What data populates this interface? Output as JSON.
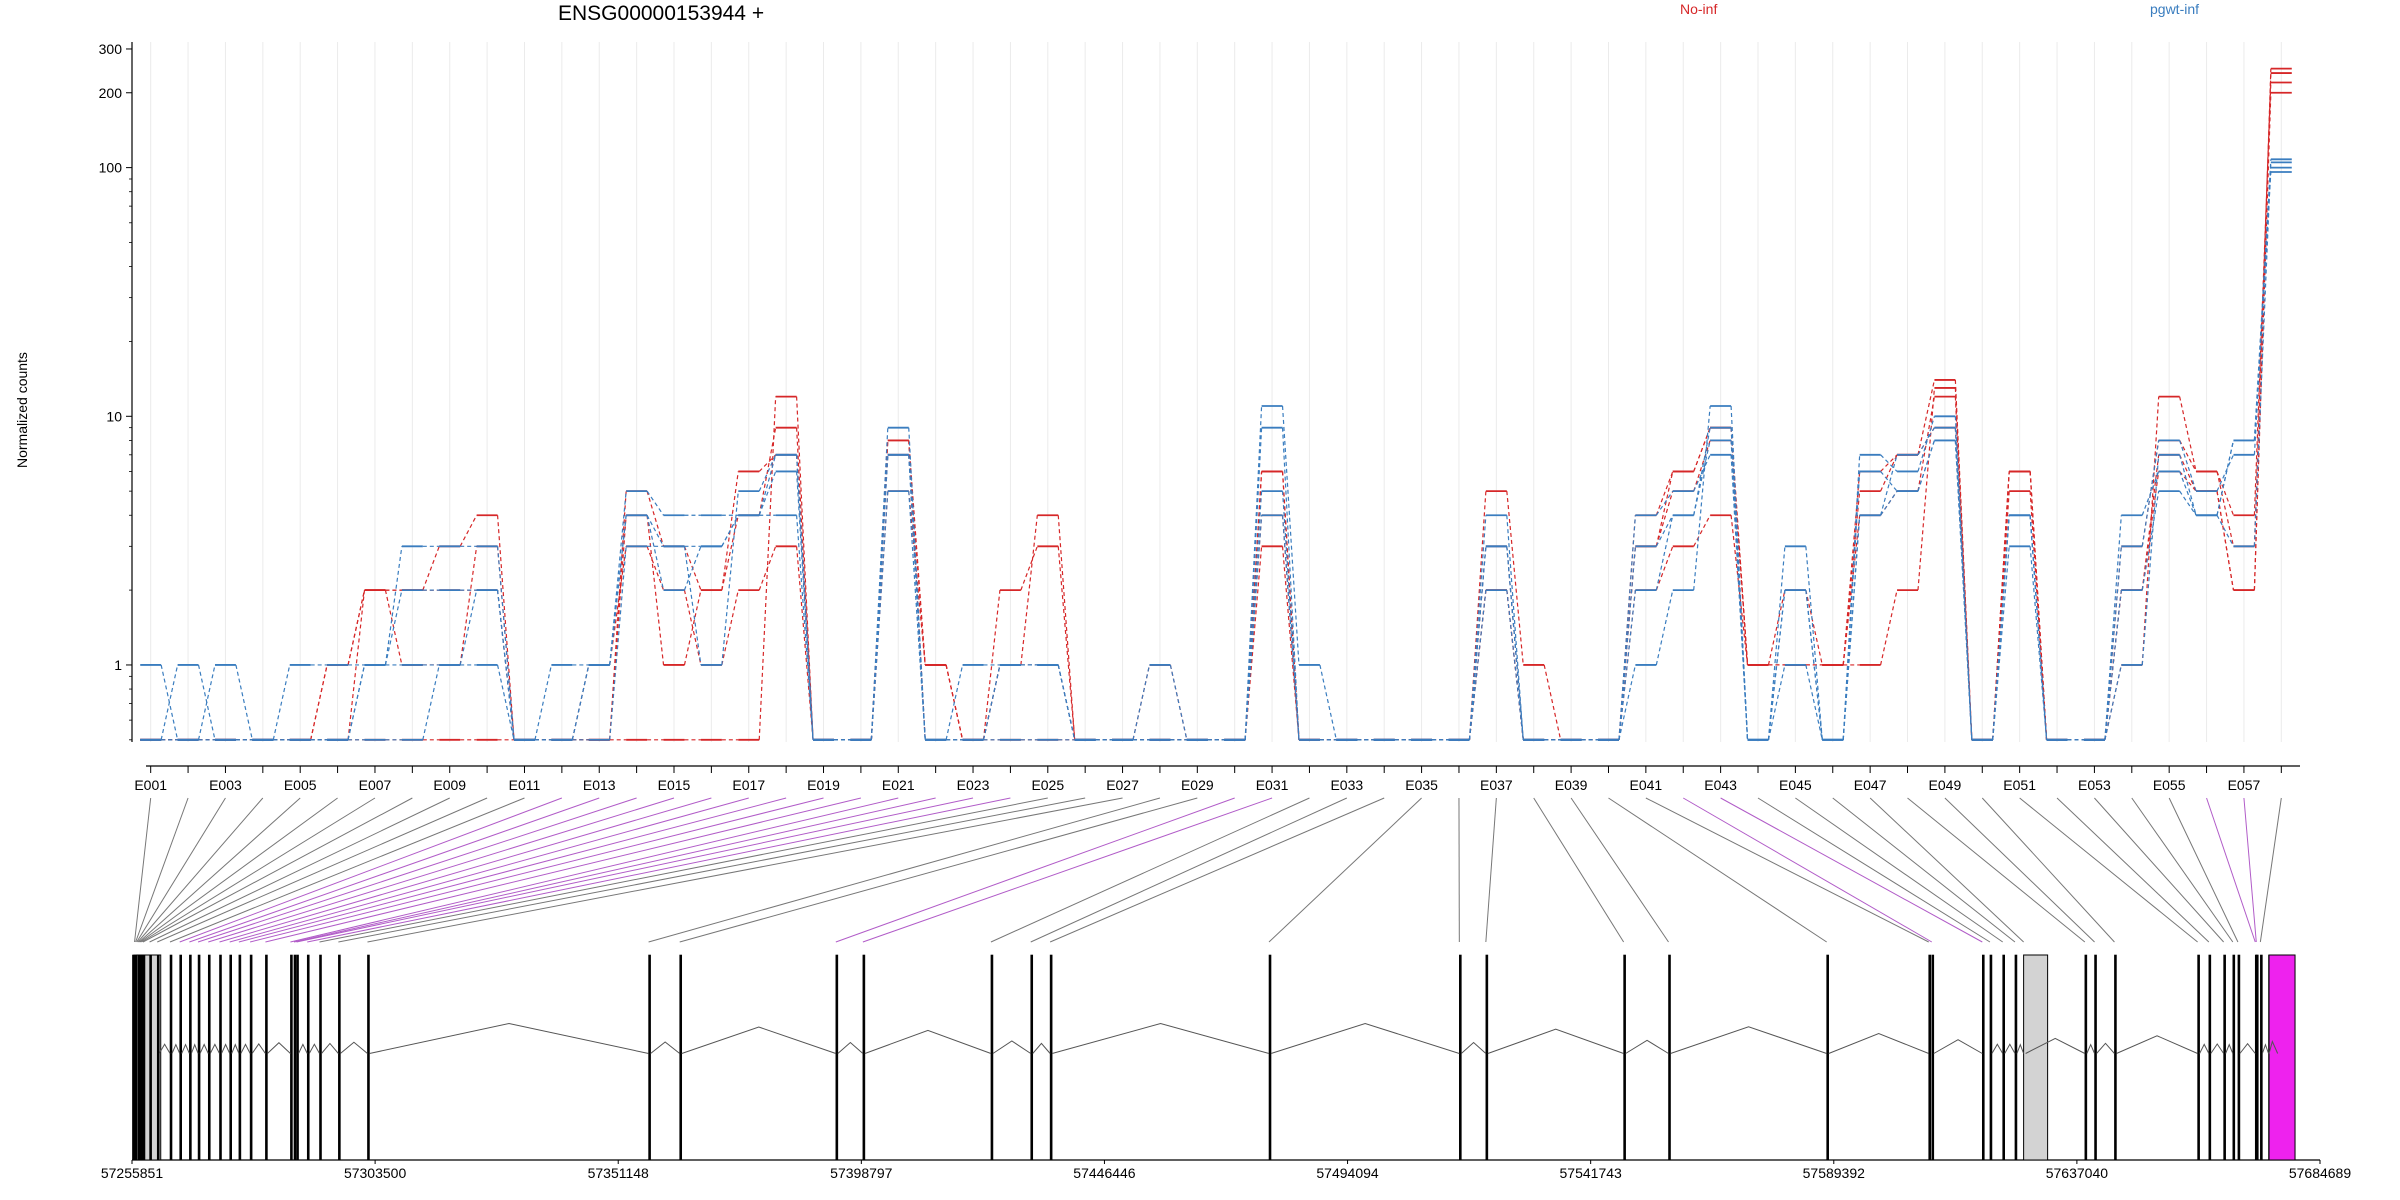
{
  "page": {
    "title": "ENSG00000153944 +",
    "legend": [
      "No-inf",
      "pgwt-inf"
    ],
    "ylabel": "Normalized counts"
  },
  "colors": {
    "no_inf": "#d62728",
    "pgwt_inf": "#3a7dbf",
    "exon_fill": "#d3d3d3",
    "exon_highlight": "#ee22ee",
    "connector_normal": "#777777",
    "connector_highlight": "#b15cc8"
  },
  "chart_data": {
    "type": "line",
    "scale": "log",
    "ylim": [
      0.49,
      320
    ],
    "yticks": [
      1,
      10,
      100,
      200,
      300
    ],
    "ytick_labels": [
      "1",
      "10",
      "100",
      "200",
      "300"
    ],
    "grid": "vertical",
    "categories": [
      "E001",
      "E002",
      "E003",
      "E004",
      "E005",
      "E006",
      "E007",
      "E008",
      "E009",
      "E010",
      "E011",
      "E012",
      "E013",
      "E014",
      "E015",
      "E016",
      "E017",
      "E018",
      "E019",
      "E020",
      "E021",
      "E022",
      "E023",
      "E024",
      "E025",
      "E026",
      "E027",
      "E028",
      "E029",
      "E030",
      "E031",
      "E032",
      "E033",
      "E034",
      "E035",
      "E036",
      "E037",
      "E038",
      "E039",
      "E040",
      "E041",
      "E042",
      "E043",
      "E044",
      "E045",
      "E046",
      "E047",
      "E048",
      "E049",
      "E050",
      "E051",
      "E052",
      "E053",
      "E054",
      "E055",
      "E056",
      "E057",
      "E058"
    ],
    "xtick_labels": [
      "E001",
      "E003",
      "E005",
      "E007",
      "E009",
      "E011",
      "E013",
      "E015",
      "E017",
      "E019",
      "E021",
      "E023",
      "E025",
      "E027",
      "E029",
      "E031",
      "E033",
      "E035",
      "E037",
      "E039",
      "E041",
      "E043",
      "E045",
      "E047",
      "E049",
      "E051",
      "E053",
      "E055",
      "E057"
    ],
    "series": [
      {
        "group": "No-inf",
        "values": [
          0.5,
          0.5,
          0.5,
          0.5,
          0.5,
          1,
          2,
          2,
          2,
          2,
          0.5,
          0.5,
          1,
          3,
          2,
          1,
          2,
          3,
          0.5,
          0.5,
          5,
          1,
          0.5,
          2,
          3,
          0.5,
          0.5,
          0.5,
          0.5,
          0.5,
          6,
          0.5,
          0.5,
          0.5,
          0.5,
          0.5,
          2,
          0.5,
          0.5,
          0.5,
          2,
          3,
          4,
          1,
          1,
          1,
          1,
          2,
          13,
          0.5,
          6,
          0.5,
          0.5,
          2,
          6,
          5,
          2,
          250
        ]
      },
      {
        "group": "No-inf",
        "values": [
          0.5,
          0.5,
          0.5,
          0.5,
          0.5,
          1,
          2,
          1,
          1,
          3,
          0.5,
          0.5,
          0.5,
          4,
          1,
          2,
          4,
          9,
          0.5,
          0.5,
          8,
          1,
          0.5,
          1,
          1,
          0.5,
          0.5,
          1,
          0.5,
          0.5,
          3,
          0.5,
          0.5,
          0.5,
          0.5,
          0.5,
          5,
          1,
          0.5,
          0.5,
          3,
          5,
          8,
          1,
          2,
          1,
          5,
          7,
          14,
          0.5,
          6,
          0.5,
          0.5,
          1,
          12,
          6,
          3,
          240
        ]
      },
      {
        "group": "No-inf",
        "values": [
          0.5,
          0.5,
          0.5,
          0.5,
          0.5,
          0.5,
          0.5,
          0.5,
          0.5,
          0.5,
          0.5,
          0.5,
          0.5,
          0.5,
          0.5,
          0.5,
          0.5,
          12,
          0.5,
          0.5,
          8,
          0.5,
          0.5,
          0.5,
          0.5,
          0.5,
          0.5,
          0.5,
          0.5,
          0.5,
          4,
          0.5,
          0.5,
          0.5,
          0.5,
          0.5,
          3,
          0.5,
          0.5,
          0.5,
          4,
          6,
          9,
          1,
          1,
          1,
          4,
          5,
          12,
          0.5,
          6,
          0.5,
          0.5,
          3,
          8,
          6,
          4,
          220
        ]
      },
      {
        "group": "No-inf",
        "values": [
          0.5,
          0.5,
          0.5,
          0.5,
          0.5,
          0.5,
          2,
          2,
          3,
          4,
          0.5,
          0.5,
          0.5,
          5,
          3,
          2,
          6,
          7,
          0.5,
          0.5,
          7,
          1,
          0.5,
          1,
          4,
          0.5,
          0.5,
          0.5,
          0.5,
          0.5,
          6,
          0.5,
          0.5,
          0.5,
          0.5,
          0.5,
          2,
          0.5,
          0.5,
          0.5,
          3,
          6,
          9,
          1,
          1,
          1,
          6,
          7,
          9,
          0.5,
          5,
          0.5,
          0.5,
          2,
          7,
          5,
          2,
          200
        ]
      },
      {
        "group": "pgwt-inf",
        "values": [
          1,
          0.5,
          1,
          0.5,
          1,
          1,
          1,
          1,
          1,
          1,
          0.5,
          1,
          1,
          4,
          3,
          1,
          5,
          7,
          0.5,
          0.5,
          9,
          0.5,
          1,
          1,
          1,
          0.5,
          0.5,
          1,
          0.5,
          0.5,
          11,
          1,
          0.5,
          0.5,
          0.5,
          0.5,
          3,
          0.5,
          0.5,
          0.5,
          1,
          2,
          11,
          0.5,
          3,
          0.5,
          7,
          6,
          10,
          0.5,
          4,
          0.5,
          0.5,
          1,
          7,
          4,
          3,
          105
        ]
      },
      {
        "group": "pgwt-inf",
        "values": [
          0.5,
          1,
          0.5,
          0.5,
          0.5,
          0.5,
          1,
          3,
          3,
          3,
          0.5,
          0.5,
          1,
          5,
          4,
          4,
          4,
          4,
          0.5,
          0.5,
          5,
          0.5,
          0.5,
          1,
          1,
          0.5,
          0.5,
          0.5,
          0.5,
          0.5,
          9,
          0.5,
          0.5,
          0.5,
          0.5,
          0.5,
          4,
          0.5,
          0.5,
          0.5,
          4,
          5,
          7,
          0.5,
          2,
          0.5,
          6,
          5,
          8,
          0.5,
          4,
          0.5,
          0.5,
          3,
          8,
          5,
          7,
          100
        ]
      },
      {
        "group": "pgwt-inf",
        "values": [
          0.5,
          0.5,
          0.5,
          0.5,
          0.5,
          0.5,
          0.5,
          0.5,
          1,
          2,
          0.5,
          0.5,
          0.5,
          3,
          3,
          3,
          4,
          6,
          0.5,
          0.5,
          7,
          0.5,
          0.5,
          0.5,
          0.5,
          0.5,
          0.5,
          0.5,
          0.5,
          0.5,
          4,
          0.5,
          0.5,
          0.5,
          0.5,
          0.5,
          3,
          0.5,
          0.5,
          0.5,
          3,
          4,
          9,
          0.5,
          1,
          0.5,
          4,
          7,
          9,
          0.5,
          4,
          0.5,
          0.5,
          4,
          6,
          4,
          8,
          108
        ]
      },
      {
        "group": "pgwt-inf",
        "values": [
          0.5,
          0.5,
          0.5,
          0.5,
          0.5,
          0.5,
          1,
          2,
          2,
          2,
          0.5,
          0.5,
          1,
          4,
          2,
          3,
          4,
          7,
          0.5,
          0.5,
          7,
          0.5,
          0.5,
          1,
          1,
          0.5,
          0.5,
          0.5,
          0.5,
          0.5,
          5,
          0.5,
          0.5,
          0.5,
          0.5,
          0.5,
          2,
          0.5,
          0.5,
          0.5,
          2,
          4,
          8,
          0.5,
          2,
          0.5,
          4,
          5,
          8,
          0.5,
          3,
          0.5,
          0.5,
          2,
          5,
          4,
          8,
          96
        ]
      }
    ],
    "gene_model": {
      "xlim": [
        57255851,
        57684689
      ],
      "xticks": [
        57255851,
        57303500,
        57351148,
        57398797,
        57446446,
        57494094,
        57541743,
        57589392,
        57637040,
        57684689
      ],
      "xtick_labels": [
        "57255851",
        "57303500",
        "57351148",
        "57398797",
        "57446446",
        "57494094",
        "57541743",
        "57589392",
        "57637040",
        "57684689"
      ],
      "exon_starts": [
        57255940,
        57256150,
        57256350,
        57256560,
        57256780,
        57257000,
        57257250,
        57257450,
        57257700,
        57258000,
        57259300,
        57260800,
        57263300,
        57265200,
        57267100,
        57268800,
        57270800,
        57273000,
        57275000,
        57276800,
        57279000,
        57282000,
        57286900,
        57287600,
        57288100,
        57290200,
        57292600,
        57296300,
        57302000,
        57357100,
        57363200,
        57393800,
        57399100,
        57424200,
        57432000,
        57435800,
        57478700,
        57516000,
        57521200,
        57548200,
        57557000,
        57588000,
        57608000,
        57608600,
        57618500,
        57620000,
        57622500,
        57624900,
        57626600,
        57638600,
        57640500,
        57644400,
        57660700,
        57662900,
        57665800,
        57667600,
        57668600,
        57672000,
        57672200,
        57673000,
        57674600,
        57676000
      ],
      "highlighted_exons": [
        11,
        12,
        13,
        14,
        15,
        16,
        17,
        18,
        19,
        20,
        21,
        22,
        23,
        29,
        30,
        41,
        42,
        55,
        56
      ]
    }
  }
}
